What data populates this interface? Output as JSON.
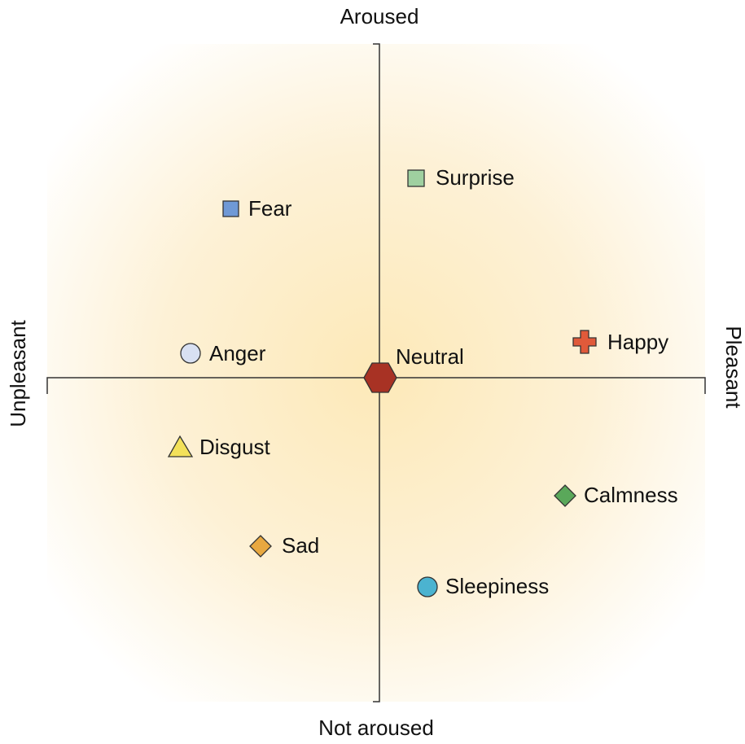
{
  "axes": {
    "top": "Aroused",
    "bottom": "Not aroused",
    "left": "Unpleasant",
    "right": "Pleasant"
  },
  "nodes": [
    {
      "label": "Surprise"
    },
    {
      "label": "Fear"
    },
    {
      "label": "Anger"
    },
    {
      "label": "Neutral"
    },
    {
      "label": "Happy"
    },
    {
      "label": "Disgust"
    },
    {
      "label": "Calmness"
    },
    {
      "label": "Sad"
    },
    {
      "label": "Sleepiness"
    }
  ]
}
